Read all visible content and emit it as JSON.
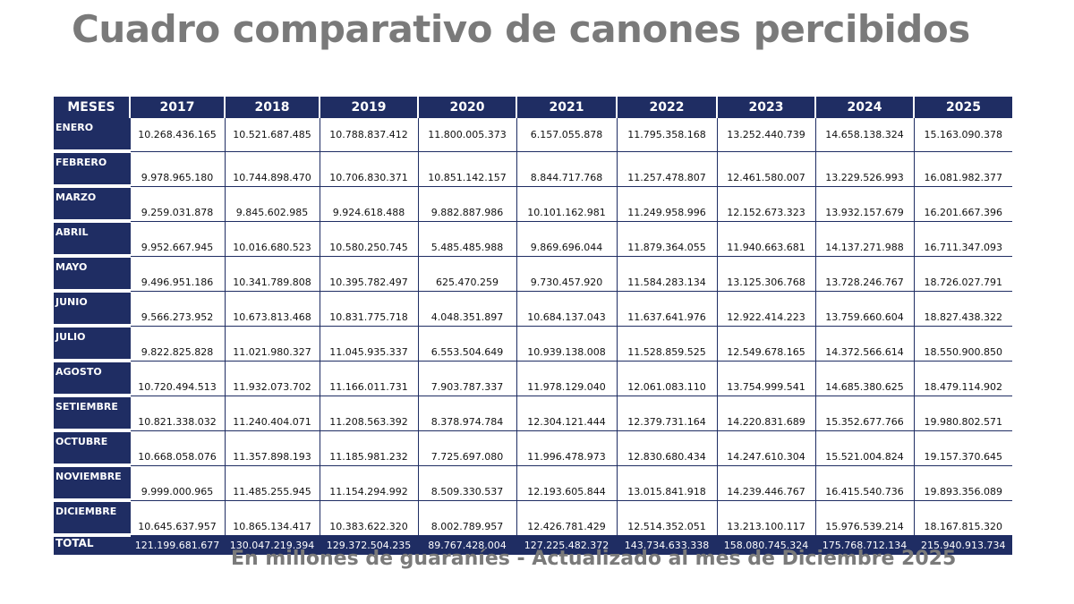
{
  "title": "Cuadro comparativo de canones percibidos",
  "subtitle": "En millones de guaraníes - Actualizado al mes de Diciembre 2025",
  "table": {
    "header": [
      "MESES",
      "2017",
      "2018",
      "2019",
      "2020",
      "2021",
      "2022",
      "2023",
      "2024",
      "2025"
    ],
    "rows": [
      {
        "month": "ENERO",
        "values": [
          "10.268.436.165",
          "10.521.687.485",
          "10.788.837.412",
          "11.800.005.373",
          "6.157.055.878",
          "11.795.358.168",
          "13.252.440.739",
          "14.658.138.324",
          "15.163.090.378"
        ]
      },
      {
        "month": "FEBRERO",
        "values": [
          "9.978.965.180",
          "10.744.898.470",
          "10.706.830.371",
          "10.851.142.157",
          "8.844.717.768",
          "11.257.478.807",
          "12.461.580.007",
          "13.229.526.993",
          "16.081.982.377"
        ]
      },
      {
        "month": "MARZO",
        "values": [
          "9.259.031.878",
          "9.845.602.985",
          "9.924.618.488",
          "9.882.887.986",
          "10.101.162.981",
          "11.249.958.996",
          "12.152.673.323",
          "13.932.157.679",
          "16.201.667.396"
        ]
      },
      {
        "month": "ABRIL",
        "values": [
          "9.952.667.945",
          "10.016.680.523",
          "10.580.250.745",
          "5.485.485.988",
          "9.869.696.044",
          "11.879.364.055",
          "11.940.663.681",
          "14.137.271.988",
          "16.711.347.093"
        ]
      },
      {
        "month": "MAYO",
        "values": [
          "9.496.951.186",
          "10.341.789.808",
          "10.395.782.497",
          "625.470.259",
          "9.730.457.920",
          "11.584.283.134",
          "13.125.306.768",
          "13.728.246.767",
          "18.726.027.791"
        ]
      },
      {
        "month": "JUNIO",
        "values": [
          "9.566.273.952",
          "10.673.813.468",
          "10.831.775.718",
          "4.048.351.897",
          "10.684.137.043",
          "11.637.641.976",
          "12.922.414.223",
          "13.759.660.604",
          "18.827.438.322"
        ]
      },
      {
        "month": "JULIO",
        "values": [
          "9.822.825.828",
          "11.021.980.327",
          "11.045.935.337",
          "6.553.504.649",
          "10.939.138.008",
          "11.528.859.525",
          "12.549.678.165",
          "14.372.566.614",
          "18.550.900.850"
        ]
      },
      {
        "month": "AGOSTO",
        "values": [
          "10.720.494.513",
          "11.932.073.702",
          "11.166.011.731",
          "7.903.787.337",
          "11.978.129.040",
          "12.061.083.110",
          "13.754.999.541",
          "14.685.380.625",
          "18.479.114.902"
        ]
      },
      {
        "month": "SETIEMBRE",
        "values": [
          "10.821.338.032",
          "11.240.404.071",
          "11.208.563.392",
          "8.378.974.784",
          "12.304.121.444",
          "12.379.731.164",
          "14.220.831.689",
          "15.352.677.766",
          "19.980.802.571"
        ]
      },
      {
        "month": "OCTUBRE",
        "values": [
          "10.668.058.076",
          "11.357.898.193",
          "11.185.981.232",
          "7.725.697.080",
          "11.996.478.973",
          "12.830.680.434",
          "14.247.610.304",
          "15.521.004.824",
          "19.157.370.645"
        ]
      },
      {
        "month": "NOVIEMBRE",
        "values": [
          "9.999.000.965",
          "11.485.255.945",
          "11.154.294.992",
          "8.509.330.537",
          "12.193.605.844",
          "13.015.841.918",
          "14.239.446.767",
          "16.415.540.736",
          "19.893.356.089"
        ]
      },
      {
        "month": "DICIEMBRE",
        "values": [
          "10.645.637.957",
          "10.865.134.417",
          "10.383.622.320",
          "8.002.789.957",
          "12.426.781.429",
          "12.514.352.051",
          "13.213.100.117",
          "15.976.539.214",
          "18.167.815.320"
        ]
      }
    ],
    "total": {
      "label": "TOTAL",
      "values": [
        "121.199.681.677",
        "130.047.219.394",
        "129.372.504.235",
        "89.767.428.004",
        "127.225.482.372",
        "143.734.633.338",
        "158.080.745.324",
        "175.768.712.134",
        "215.940.913.734"
      ]
    }
  }
}
